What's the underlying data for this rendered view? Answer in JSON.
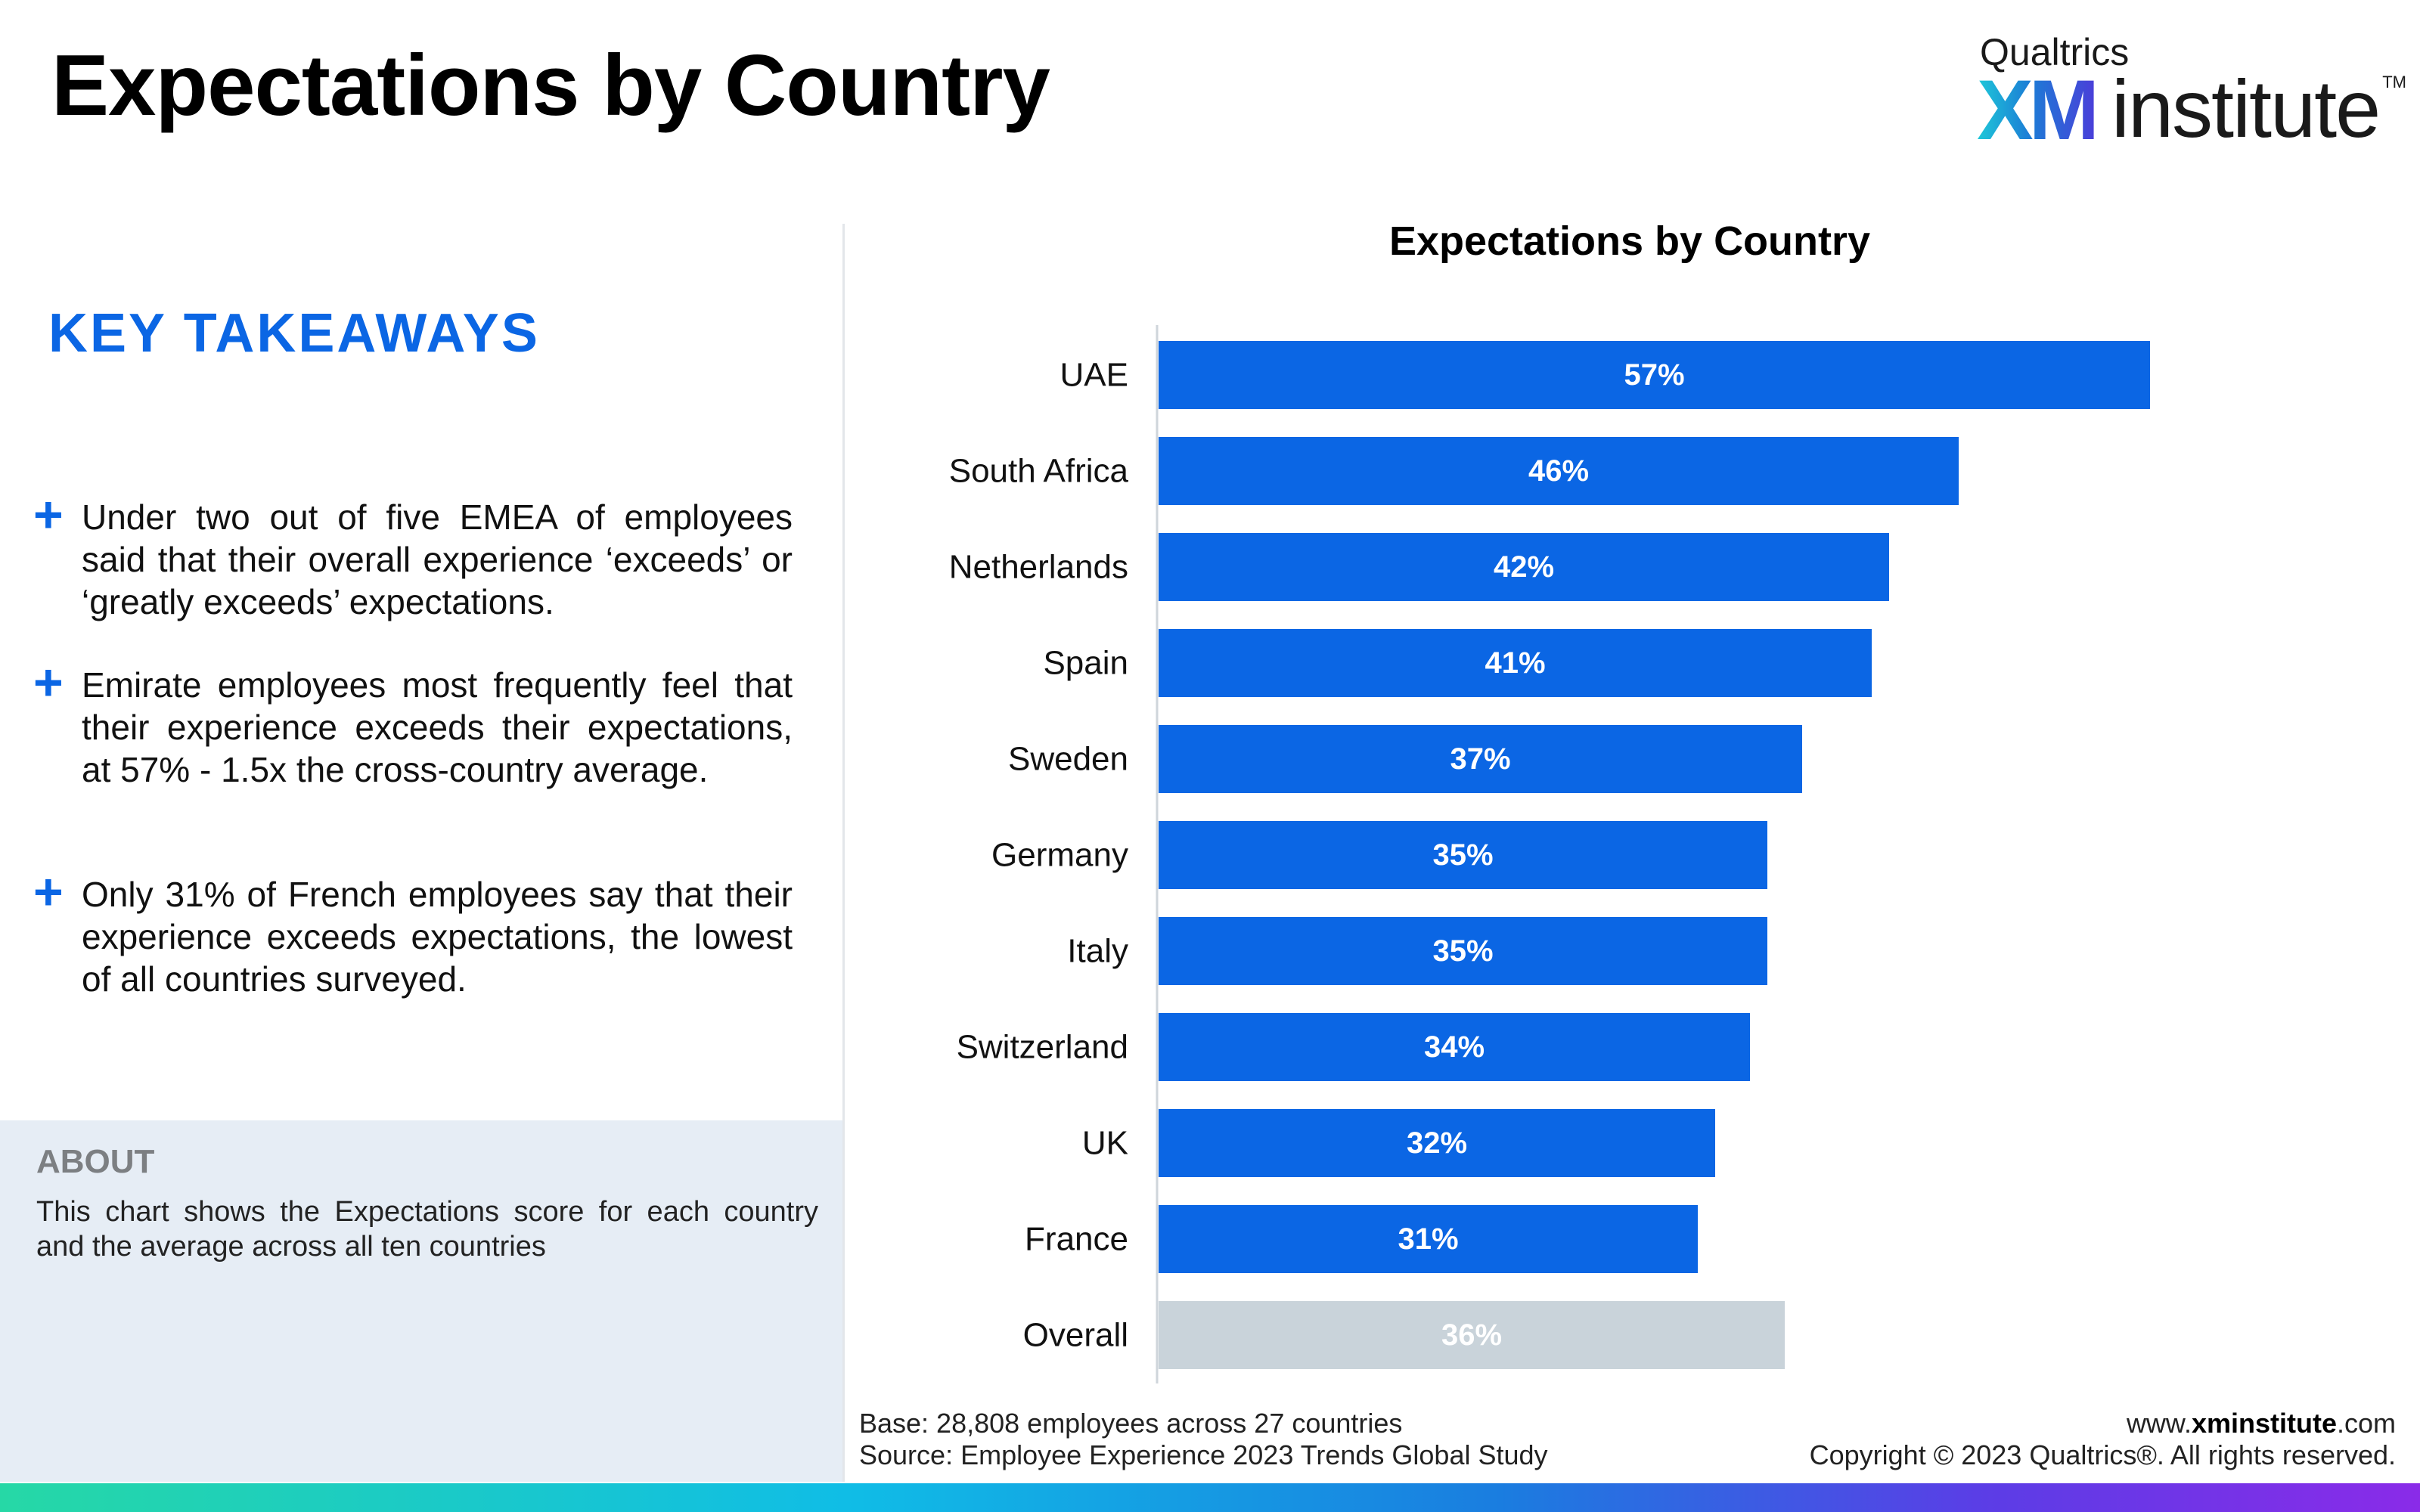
{
  "header": {
    "title": "Expectations by Country",
    "logo": {
      "top_text": "Qualtrics",
      "brand_xm": "XM",
      "brand_word": "institute",
      "trademark": "TM"
    }
  },
  "takeaways": {
    "title": "KEY TAKEAWAYS",
    "icon": "plus-icon",
    "items": [
      "Under two out of five EMEA of employees said that their overall experience ‘exceeds’ or ‘greatly exceeds’ expectations.",
      "Emirate employees most frequently feel that their experience exceeds their expectations, at 57% - 1.5x the cross-country average.",
      "Only 31% of French employees say that their experience exceeds expectations, the lowest of all countries surveyed."
    ]
  },
  "about": {
    "title": "ABOUT",
    "text": "This chart shows the Expectations score for each country and the average across all ten countries"
  },
  "footer": {
    "base": "Base: 28,808 employees across 27 countries",
    "source": "Source: Employee Experience 2023 Trends Global Study",
    "site_prefix": "www.",
    "site_bold": "xminstitute",
    "site_suffix": ".com",
    "copyright": "Copyright © 2023 Qualtrics®. All rights reserved."
  },
  "colors": {
    "accent": "#0b66e4",
    "bar": "#0b66e4",
    "overall_bar": "#c9d3da",
    "bar_label": "#ffffff"
  },
  "chart_data": {
    "type": "bar",
    "orientation": "horizontal",
    "title": "Expectations by Country",
    "categories": [
      "UAE",
      "South Africa",
      "Netherlands",
      "Spain",
      "Sweden",
      "Germany",
      "Italy",
      "Switzerland",
      "UK",
      "France",
      "Overall"
    ],
    "values": [
      57,
      46,
      42,
      41,
      37,
      35,
      35,
      34,
      32,
      31,
      36
    ],
    "labels": [
      "57%",
      "46%",
      "42%",
      "41%",
      "37%",
      "35%",
      "35%",
      "34%",
      "32%",
      "31%",
      "36%"
    ],
    "highlight": "Overall",
    "unit": "%",
    "xlim": [
      0,
      70
    ],
    "xlabel": "",
    "ylabel": "",
    "grid": false,
    "legend": "none"
  }
}
